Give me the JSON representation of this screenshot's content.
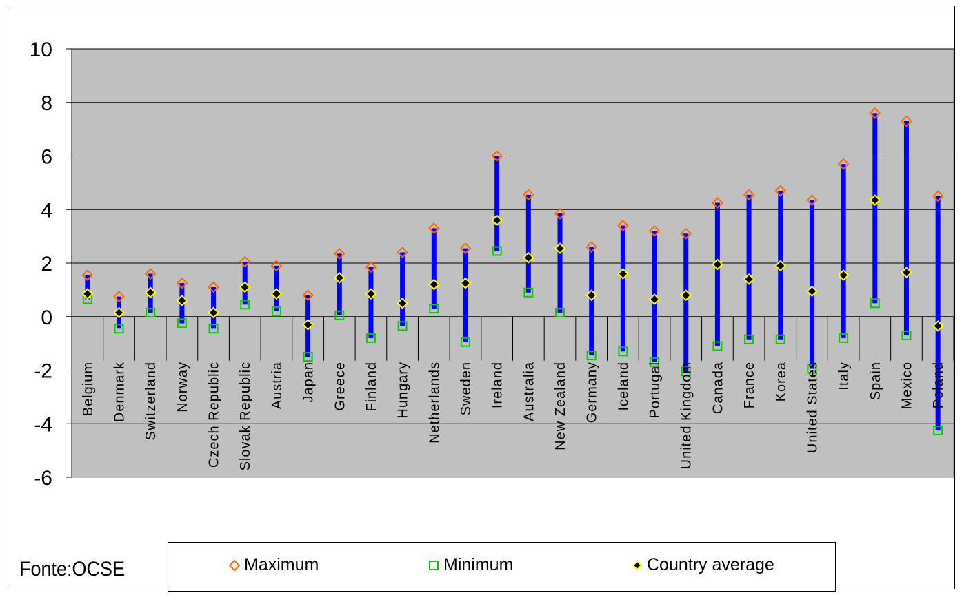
{
  "chart_data": {
    "type": "range",
    "title": "",
    "source": "Fonte:OCSE",
    "ylim": [
      -6,
      10
    ],
    "yticks": [
      "10",
      "8",
      "6",
      "4",
      "2",
      "0",
      "-2",
      "-4",
      "-6"
    ],
    "ytick_values": [
      10,
      8,
      6,
      4,
      2,
      0,
      -2,
      -4,
      -6
    ],
    "grid": true,
    "plot_background": "#c0c0c0",
    "legend_placement": "bottom",
    "legend": {
      "max_label": "Maximum",
      "min_label": "Minimum",
      "avg_label": "Country average"
    },
    "colors": {
      "range_bar": "#0000ff",
      "max_marker": "#ff6600",
      "min_marker": "#00cc00",
      "avg_marker": "#000000",
      "avg_marker_edge": "#ffff00"
    },
    "categories": [
      "Belgium",
      "Denmark",
      "Switzerland",
      "Norway",
      "Czech Republic",
      "Slovak Republic",
      "Austria",
      "Japan",
      "Greece",
      "Finland",
      "Hungary",
      "Netherlands",
      "Sweden",
      "Ireland",
      "Australia",
      "New Zealand",
      "Germany",
      "Iceland",
      "Portugal",
      "United Kingdom",
      "Canada",
      "France",
      "Korea",
      "United States",
      "Italy",
      "Spain",
      "Mexico",
      "Poland"
    ],
    "category_labels": [
      "Belgium",
      "Denmark",
      "Switzerland",
      "Norway",
      "Czech Republic",
      "Slovak Republic",
      "Austria",
      "Japan",
      "Greece",
      "Finland",
      "Hungary",
      "Netherlands",
      "Sweden",
      "Ireland",
      "Australia",
      "New Zealand",
      "Germany",
      "Iceland",
      "Portugal",
      "United Kingdom",
      "Canada",
      "France",
      "Korea",
      "United States",
      "Italy",
      "Spain",
      "Mexico",
      "Poland"
    ],
    "series": [
      {
        "name": "Maximum",
        "values": [
          1.55,
          0.75,
          1.6,
          1.25,
          1.1,
          2.05,
          1.9,
          0.8,
          2.35,
          1.85,
          2.4,
          3.3,
          2.55,
          6.0,
          4.55,
          3.85,
          2.6,
          3.4,
          3.2,
          3.1,
          4.25,
          4.55,
          4.7,
          4.35,
          5.7,
          7.6,
          7.3,
          4.5
        ]
      },
      {
        "name": "Minimum",
        "values": [
          0.65,
          -0.45,
          0.15,
          -0.25,
          -0.45,
          0.45,
          0.2,
          -1.5,
          0.05,
          -0.8,
          -0.35,
          0.3,
          -0.95,
          2.45,
          0.9,
          0.15,
          -1.45,
          -1.3,
          -1.7,
          -2.05,
          -1.1,
          -0.85,
          -0.85,
          -1.95,
          -0.8,
          0.5,
          -0.7,
          -4.25
        ]
      },
      {
        "name": "Country average",
        "values": [
          0.85,
          0.15,
          0.9,
          0.6,
          0.15,
          1.1,
          0.85,
          -0.3,
          1.45,
          0.85,
          0.5,
          1.2,
          1.25,
          3.6,
          2.2,
          2.55,
          0.8,
          1.6,
          0.65,
          0.8,
          1.95,
          1.4,
          1.9,
          0.95,
          1.55,
          4.35,
          1.65,
          -0.35
        ]
      }
    ]
  }
}
